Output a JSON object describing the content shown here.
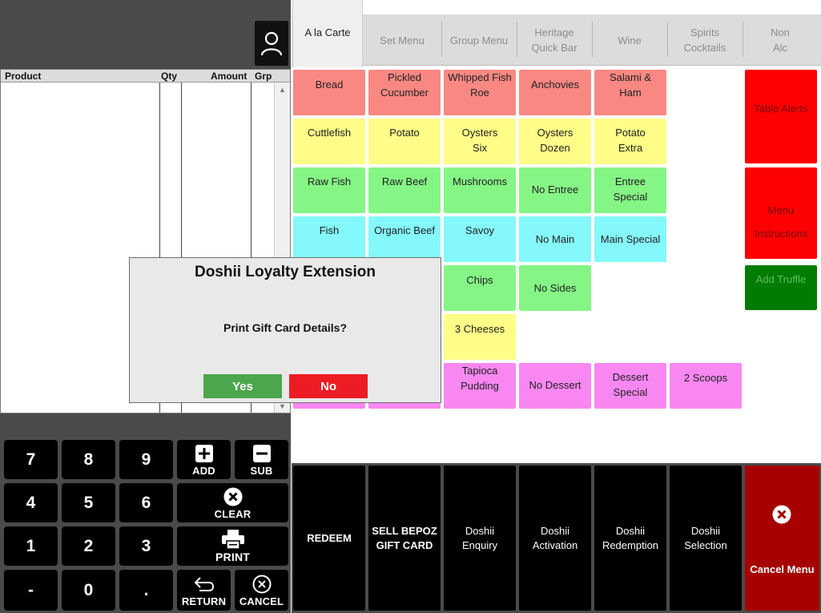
{
  "order_list": {
    "columns": {
      "product": "Product",
      "qty": "Qty",
      "amount": "Amount",
      "grp": "Grp"
    },
    "rows": []
  },
  "tabs": [
    {
      "label": "A la Carte",
      "active": true
    },
    {
      "label": "Set Menu"
    },
    {
      "label": "Group Menu"
    },
    {
      "label": "Heritage\nQuick Bar"
    },
    {
      "label": "Wine"
    },
    {
      "label": "Spirits\nCocktails"
    },
    {
      "label": "Non\nAlc"
    }
  ],
  "menu": {
    "bread": "Bread",
    "pickled_cucumber": "Pickled\nCucumber",
    "whipped_fish_roe": "Whipped Fish\nRoe",
    "anchovies": "Anchovies",
    "salami_ham": "Salami &\nHam",
    "cuttlefish": "Cuttlefish",
    "potato": "Potato",
    "oysters_six": "Oysters\nSix",
    "oysters_dozen": "Oysters\nDozen",
    "potato_extra": "Potato\nExtra",
    "raw_fish": "Raw Fish",
    "raw_beef": "Raw Beef",
    "mushrooms": "Mushrooms",
    "no_entree": "No Entree",
    "entree_special": "Entree\nSpecial",
    "fish": "Fish",
    "organic_beef": "Organic Beef",
    "savoy": "Savoy",
    "no_main": "No Main",
    "main_special": "Main Special",
    "chips": "Chips",
    "no_sides": "No Sides",
    "three_cheeses": "3 Cheeses",
    "tapioca_pudding": "Tapioca\nPudding",
    "no_dessert": "No Dessert",
    "dessert_special": "Dessert\nSpecial",
    "two_scoops": "2 Scoops"
  },
  "side_buttons": {
    "table_alerts": "Table Alerts",
    "menu_line": "Menu",
    "instructions_line": "Instructions",
    "add_truffle": "Add Truffle"
  },
  "actions": {
    "redeem": "REDEEM",
    "sell_gift_card": "SELL BEPOZ\nGIFT CARD",
    "doshii_enquiry": "Doshii\nEnquiry",
    "doshii_activation": "Doshii\nActivation",
    "doshii_redemption": "Doshii\nRedemption",
    "doshii_selection": "Doshii\nSelection",
    "cancel_menu": "Cancel Menu"
  },
  "keypad": {
    "k7": "7",
    "k8": "8",
    "k9": "9",
    "k4": "4",
    "k5": "5",
    "k6": "6",
    "k1": "1",
    "k2": "2",
    "k3": "3",
    "minus": "-",
    "k0": "0",
    "dot": ".",
    "add": "ADD",
    "sub": "SUB",
    "clear": "CLEAR",
    "print": "PRINT",
    "return": "RETURN",
    "cancel": "CANCEL"
  },
  "dialog": {
    "title": "Doshii Loyalty Extension",
    "message": "Print Gift Card Details?",
    "yes": "Yes",
    "no": "No"
  },
  "colors": {
    "red_item": "#f98883",
    "yellow_item": "#fdfd87",
    "green_item": "#85f585",
    "cyan_item": "#84f8fb",
    "pink_item": "#f987f2",
    "alert_red": "#ff0000",
    "truffle_green": "#007c00",
    "cancel_menu": "#a60000",
    "dialog_yes": "#4ca64c",
    "dialog_no": "#ed1c24"
  },
  "icons": {
    "user": "user-icon",
    "add": "plus-box-icon",
    "sub": "minus-box-icon",
    "clear": "x-circle-icon",
    "print": "printer-icon",
    "return": "return-arrow-icon",
    "cancel": "x-circle-outline-icon",
    "cancel_menu": "x-circle-icon"
  }
}
